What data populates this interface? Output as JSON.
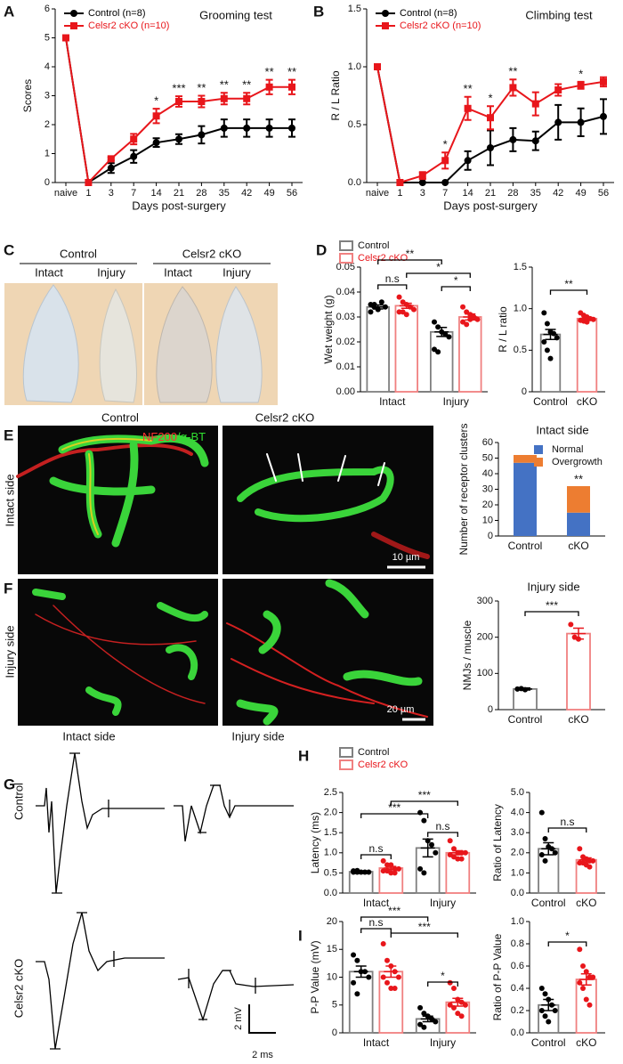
{
  "figure": {
    "panel_labels": [
      "A",
      "B",
      "C",
      "D",
      "E",
      "F",
      "G",
      "H",
      "I"
    ],
    "C": {
      "groups": [
        "Control",
        "Celsr2 cKO"
      ],
      "sides": [
        "Intact",
        "Injury",
        "Intact",
        "Injury"
      ]
    },
    "E": {
      "columns": [
        "Control",
        "Celsr2 cKO"
      ],
      "stain": [
        "NF200",
        "/α-BT"
      ],
      "row": "Intact side",
      "scale": "10 µm"
    },
    "F": {
      "row": "Injury side",
      "scale": "20 µm"
    },
    "G": {
      "columns": [
        "Intact side",
        "Injury side"
      ],
      "rows": [
        "Control",
        "Celsr2 cKO"
      ],
      "scale_y": "2 mV",
      "scale_x": "2 ms"
    }
  },
  "chart_data": [
    {
      "type": "line",
      "title": "Grooming test",
      "x_label": "Days post-surgery",
      "y_label": "Scores",
      "categories": [
        "naive",
        "1",
        "3",
        "7",
        "14",
        "21",
        "28",
        "35",
        "42",
        "49",
        "56"
      ],
      "ylim": [
        0,
        6
      ],
      "yticks": [
        0,
        1,
        2,
        3,
        4,
        5,
        6
      ],
      "legend": "upper left",
      "series": [
        {
          "name": "Control (n=8)",
          "color": "#000000",
          "marker": "circle",
          "values": [
            5,
            0,
            0.5,
            0.9,
            1.38,
            1.5,
            1.65,
            1.88,
            1.88,
            1.88,
            1.88
          ],
          "errors": [
            0,
            0,
            0.17,
            0.22,
            0.15,
            0.17,
            0.3,
            0.3,
            0.3,
            0.3,
            0.3
          ]
        },
        {
          "name": "Celsr2 cKO (n=10)",
          "color": "#e8161b",
          "marker": "square",
          "values": [
            5,
            0,
            0.82,
            1.5,
            2.3,
            2.8,
            2.8,
            2.9,
            2.9,
            3.3,
            3.3
          ],
          "errors": [
            0,
            0,
            0.05,
            0.18,
            0.25,
            0.18,
            0.2,
            0.2,
            0.2,
            0.25,
            0.25
          ]
        }
      ],
      "significance": [
        null,
        null,
        null,
        null,
        "*",
        "***",
        "**",
        "**",
        "**",
        "**",
        "**"
      ]
    },
    {
      "type": "line",
      "title": "Climbing test",
      "x_label": "Days post-surgery",
      "y_label": "R / L Ratio",
      "categories": [
        "naive",
        "1",
        "3",
        "7",
        "14",
        "21",
        "28",
        "35",
        "42",
        "49",
        "56"
      ],
      "ylim": [
        0,
        1.5
      ],
      "yticks": [
        {
          "value": 0,
          "label": "0.0"
        },
        0.5,
        {
          "value": 1,
          "label": "1.0"
        },
        1.5
      ],
      "legend": "upper left",
      "series": [
        {
          "name": "Control (n=8)",
          "color": "#000000",
          "marker": "circle",
          "values": [
            1,
            0,
            0,
            0,
            0.19,
            0.3,
            0.37,
            0.36,
            0.52,
            0.52,
            0.57
          ],
          "errors": [
            0,
            0,
            0,
            0,
            0.08,
            0.15,
            0.1,
            0.08,
            0.15,
            0.12,
            0.15
          ]
        },
        {
          "name": "Celsr2 cKO (n=10)",
          "color": "#e8161b",
          "marker": "square",
          "values": [
            1,
            0,
            0.06,
            0.19,
            0.64,
            0.56,
            0.82,
            0.68,
            0.8,
            0.84,
            0.87
          ],
          "errors": [
            0,
            0,
            0.03,
            0.07,
            0.1,
            0.1,
            0.07,
            0.1,
            0.05,
            0.03,
            0.04
          ]
        }
      ],
      "significance": [
        null,
        null,
        null,
        "*",
        "**",
        "*",
        "**",
        null,
        null,
        "*",
        null
      ]
    },
    {
      "type": "bar",
      "y_label": "Wet weight (g)",
      "categories": [
        "Intact",
        "Injury"
      ],
      "ylim": [
        0,
        0.05
      ],
      "yticks": [
        {
          "value": 0,
          "label": "0.00"
        },
        {
          "value": 0.01,
          "label": "0.01"
        },
        {
          "value": 0.02,
          "label": "0.02"
        },
        {
          "value": 0.03,
          "label": "0.03"
        },
        {
          "value": 0.04,
          "label": "0.04"
        },
        {
          "value": 0.05,
          "label": "0.05"
        }
      ],
      "legend": "above",
      "series": [
        {
          "name": "Control",
          "color": "#808080",
          "point_color": "#000000",
          "values": [
            0.034,
            0.024
          ],
          "errors": [
            0.0008,
            0.0018
          ],
          "points": [
            [
              0.035,
              0.034,
              0.033,
              0.036,
              0.034,
              0.032,
              0.035
            ],
            [
              0.028,
              0.026,
              0.024,
              0.023,
              0.022,
              0.017,
              0.016
            ]
          ]
        },
        {
          "name": "Celsr2 cKO",
          "color": "#f08080",
          "point_color": "#e8161b",
          "values": [
            0.0345,
            0.03
          ],
          "errors": [
            0.001,
            0.0012
          ],
          "points": [
            [
              0.038,
              0.036,
              0.035,
              0.034,
              0.033,
              0.032,
              0.032,
              0.031
            ],
            [
              0.034,
              0.032,
              0.031,
              0.03,
              0.029,
              0.028,
              0.027,
              0.029
            ]
          ]
        }
      ],
      "brackets": [
        "**",
        "*",
        "n.s",
        "*"
      ]
    },
    {
      "type": "bar",
      "y_label": "R / L ratio",
      "categories": [
        "Control",
        "cKO"
      ],
      "ylim": [
        0,
        1.5
      ],
      "yticks": [
        0,
        0.5,
        {
          "value": 1,
          "label": "1.0"
        },
        1.5
      ],
      "values": [
        0.69,
        0.88
      ],
      "errors": [
        0.06,
        0.015
      ],
      "colors": [
        "#808080",
        "#f08080"
      ],
      "point_colors": [
        "#000000",
        "#e8161b"
      ],
      "points": [
        [
          0.95,
          0.82,
          0.72,
          0.7,
          0.65,
          0.6,
          0.5,
          0.4
        ],
        [
          0.95,
          0.92,
          0.9,
          0.88,
          0.87,
          0.86,
          0.85,
          0.84
        ]
      ],
      "brackets": [
        "**"
      ]
    },
    {
      "type": "bar",
      "stacked": true,
      "title": "Intact side",
      "y_label": "Number of receptor clusters",
      "categories": [
        "Control",
        "cKO"
      ],
      "ylim": [
        0,
        60
      ],
      "yticks": [
        0,
        10,
        20,
        30,
        40,
        50,
        60
      ],
      "legend": "upper right",
      "series": [
        {
          "name": "Normal",
          "color": "#4472c4",
          "values": [
            47,
            15
          ]
        },
        {
          "name": "Overgrowth",
          "color": "#ed7d31",
          "values": [
            5,
            17
          ]
        }
      ],
      "significance": [
        null,
        "**"
      ]
    },
    {
      "type": "bar",
      "title": "Injury side",
      "y_label": "NMJs / muscle",
      "categories": [
        "Control",
        "cKO"
      ],
      "ylim": [
        0,
        300
      ],
      "yticks": [
        0,
        100,
        200,
        300
      ],
      "values": [
        57,
        210
      ],
      "errors": [
        3,
        15
      ],
      "colors": [
        "#808080",
        "#f08080"
      ],
      "point_colors": [
        "#000000",
        "#e8161b"
      ],
      "points": [
        [
          57,
          58,
          55
        ],
        [
          235,
          200,
          195
        ]
      ],
      "brackets": [
        "***"
      ]
    },
    {
      "type": "bar",
      "y_label": "Latency (ms)",
      "categories": [
        "Intact",
        "Injury"
      ],
      "ylim": [
        0,
        2.5
      ],
      "yticks": [
        {
          "value": 0,
          "label": "0.0"
        },
        0.5,
        {
          "value": 1,
          "label": "1.0"
        },
        1.5,
        {
          "value": 2,
          "label": "2.0"
        },
        2.5
      ],
      "legend": "above",
      "series": [
        {
          "name": "Control",
          "color": "#808080",
          "point_color": "#000000",
          "values": [
            0.53,
            1.12
          ],
          "errors": [
            0.02,
            0.22
          ],
          "points": [
            [
              0.52,
              0.52,
              0.52,
              0.52,
              0.52,
              0.55,
              0.56
            ],
            [
              2.0,
              1.8,
              1.3,
              1.2,
              1.0,
              0.6,
              0.5
            ]
          ]
        },
        {
          "name": "Celsr2 cKO",
          "color": "#f08080",
          "point_color": "#e8161b",
          "values": [
            0.62,
            1.0
          ],
          "errors": [
            0.04,
            0.05
          ],
          "points": [
            [
              0.8,
              0.7,
              0.7,
              0.6,
              0.6,
              0.55,
              0.55,
              0.5,
              0.5
            ],
            [
              1.3,
              1.1,
              1.0,
              1.0,
              1.0,
              0.95,
              0.9,
              0.85,
              0.85
            ]
          ]
        }
      ],
      "brackets": [
        "***",
        "***",
        "n.s",
        "n.s"
      ]
    },
    {
      "type": "bar",
      "y_label": "Ratio of Latency",
      "categories": [
        "Control",
        "cKO"
      ],
      "ylim": [
        0,
        5
      ],
      "yticks": [
        {
          "value": 0,
          "label": "0.0"
        },
        {
          "value": 1,
          "label": "1.0"
        },
        {
          "value": 2,
          "label": "2.0"
        },
        {
          "value": 3,
          "label": "3.0"
        },
        {
          "value": 4,
          "label": "4.0"
        },
        {
          "value": 5,
          "label": "5.0"
        }
      ],
      "values": [
        2.2,
        1.65
      ],
      "errors": [
        0.3,
        0.1
      ],
      "colors": [
        "#808080",
        "#f08080"
      ],
      "point_colors": [
        "#000000",
        "#e8161b"
      ],
      "points": [
        [
          4.0,
          2.7,
          2.3,
          2.2,
          2.0,
          1.9,
          1.6
        ],
        [
          2.2,
          1.8,
          1.7,
          1.6,
          1.6,
          1.5,
          1.5,
          1.4,
          1.3
        ]
      ],
      "brackets": [
        "n.s"
      ]
    },
    {
      "type": "bar",
      "y_label": "P-P Value (mV)",
      "categories": [
        "Intact",
        "Injury"
      ],
      "ylim": [
        0,
        20
      ],
      "yticks": [
        0,
        5,
        10,
        15,
        20
      ],
      "series": [
        {
          "name": "Control",
          "color": "#808080",
          "point_color": "#000000",
          "values": [
            11,
            2.5
          ],
          "errors": [
            1,
            0.5
          ],
          "points": [
            [
              14,
              13,
              11,
              11,
              10,
              9,
              7
            ],
            [
              4.5,
              3.5,
              3,
              2.5,
              2,
              1.5,
              1
            ]
          ]
        },
        {
          "name": "Celsr2 cKO",
          "color": "#f08080",
          "point_color": "#e8161b",
          "values": [
            11,
            5.5
          ],
          "errors": [
            1,
            0.7
          ],
          "points": [
            [
              16,
              13,
              12,
              11,
              10,
              10,
              9,
              8,
              8
            ],
            [
              9,
              8,
              6,
              5.5,
              5,
              5,
              4.5,
              3.5,
              3
            ]
          ]
        }
      ],
      "brackets": [
        "***",
        "n.s",
        "***",
        "*"
      ]
    },
    {
      "type": "bar",
      "y_label": "Ratio of P-P Value",
      "categories": [
        "Control",
        "cKO"
      ],
      "ylim": [
        0,
        1
      ],
      "yticks": [
        {
          "value": 0,
          "label": "0.0"
        },
        0.2,
        0.4,
        0.6,
        0.8,
        {
          "value": 1,
          "label": "1.0"
        }
      ],
      "values": [
        0.25,
        0.48
      ],
      "errors": [
        0.05,
        0.05
      ],
      "colors": [
        "#808080",
        "#f08080"
      ],
      "point_colors": [
        "#000000",
        "#e8161b"
      ],
      "points": [
        [
          0.4,
          0.35,
          0.3,
          0.25,
          0.2,
          0.2,
          0.15,
          0.1
        ],
        [
          0.75,
          0.6,
          0.55,
          0.5,
          0.5,
          0.45,
          0.4,
          0.3,
          0.25
        ]
      ],
      "brackets": [
        "*"
      ]
    }
  ]
}
